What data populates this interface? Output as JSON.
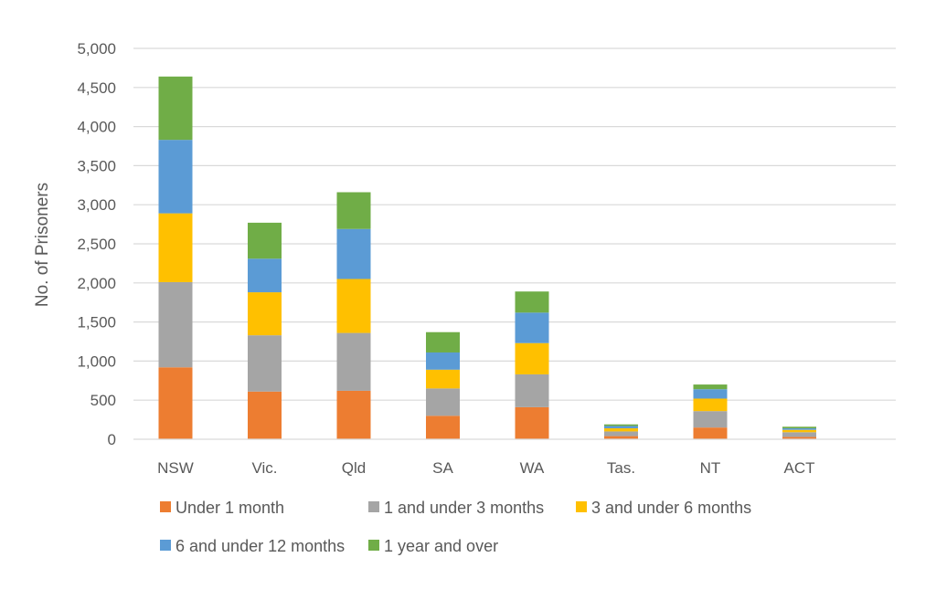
{
  "chart_data": {
    "type": "bar",
    "stacked": true,
    "ylabel": "No. of Prisoners",
    "ylim": [
      0,
      5000
    ],
    "yticks": [
      0,
      500,
      1000,
      1500,
      2000,
      2500,
      3000,
      3500,
      4000,
      4500,
      5000
    ],
    "ytick_labels": [
      "0",
      "500",
      "1,000",
      "1,500",
      "2,000",
      "2,500",
      "3,000",
      "3,500",
      "4,000",
      "4,500",
      "5,000"
    ],
    "grid": true,
    "legend_position": "bottom",
    "categories": [
      "NSW",
      "Vic.",
      "Qld",
      "SA",
      "WA",
      "Tas.",
      "NT",
      "ACT"
    ],
    "series": [
      {
        "name": "Under 1 month",
        "color": "#ED7D31",
        "values": [
          920,
          610,
          620,
          300,
          410,
          40,
          150,
          30
        ]
      },
      {
        "name": "1 and under 3 months",
        "color": "#A5A5A5",
        "values": [
          1090,
          720,
          740,
          350,
          420,
          60,
          210,
          60
        ]
      },
      {
        "name": "3 and under 6 months",
        "color": "#FFC000",
        "values": [
          880,
          550,
          690,
          240,
          400,
          40,
          160,
          30
        ]
      },
      {
        "name": "6 and under 12 months",
        "color": "#5B9BD5",
        "values": [
          940,
          430,
          640,
          220,
          390,
          30,
          120,
          20
        ]
      },
      {
        "name": "1 year and over",
        "color": "#70AD47",
        "values": [
          810,
          460,
          470,
          260,
          270,
          20,
          60,
          20
        ]
      }
    ]
  }
}
